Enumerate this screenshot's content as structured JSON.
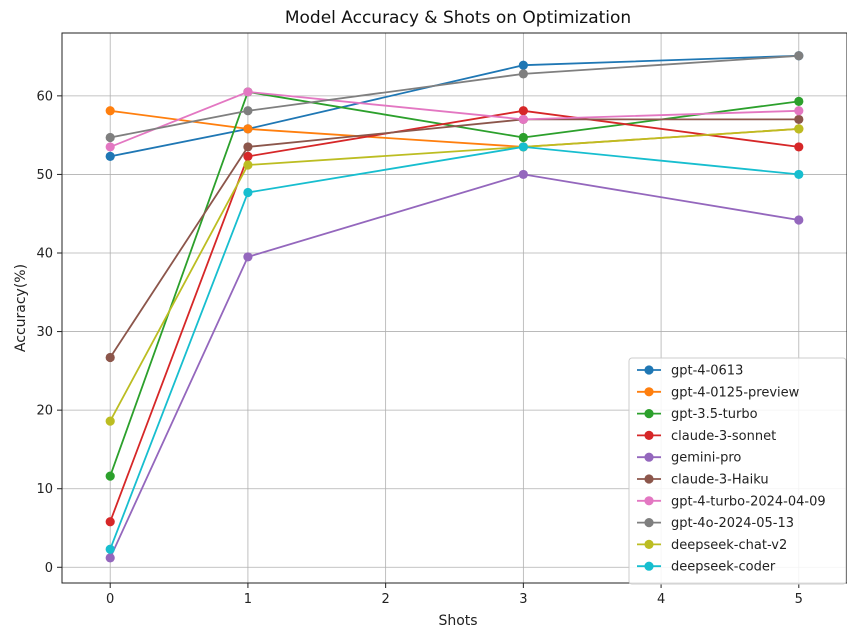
{
  "chart_data": {
    "type": "line",
    "title": "Model Accuracy & Shots on Optimization",
    "xlabel": "Shots",
    "ylabel": "Accuracy(%)",
    "xlim": [
      -0.35,
      5.35
    ],
    "ylim": [
      -2,
      68
    ],
    "xticks": [
      0,
      1,
      2,
      3,
      4,
      5
    ],
    "yticks": [
      0,
      10,
      20,
      30,
      40,
      50,
      60
    ],
    "grid": true,
    "legend_position": "lower right",
    "x": [
      0,
      1,
      3,
      5
    ],
    "series": [
      {
        "name": "gpt-4-0613",
        "color": "#1f77b4",
        "values": [
          52.3,
          55.8,
          63.9,
          65.1
        ]
      },
      {
        "name": "gpt-4-0125-preview",
        "color": "#ff7f0e",
        "values": [
          58.1,
          55.8,
          53.5,
          55.8
        ]
      },
      {
        "name": "gpt-3.5-turbo",
        "color": "#2ca02c",
        "values": [
          11.6,
          60.5,
          54.7,
          59.3
        ]
      },
      {
        "name": "claude-3-sonnet",
        "color": "#d62728",
        "values": [
          5.8,
          52.3,
          58.1,
          53.5
        ]
      },
      {
        "name": "gemini-pro",
        "color": "#9467bd",
        "values": [
          1.2,
          39.5,
          50.0,
          44.2
        ]
      },
      {
        "name": "claude-3-Haiku",
        "color": "#8c564b",
        "values": [
          26.7,
          53.5,
          57.0,
          57.0
        ]
      },
      {
        "name": "gpt-4-turbo-2024-04-09",
        "color": "#e377c2",
        "values": [
          53.5,
          60.5,
          57.0,
          58.1
        ]
      },
      {
        "name": "gpt-4o-2024-05-13",
        "color": "#7f7f7f",
        "values": [
          54.7,
          58.1,
          62.8,
          65.1
        ]
      },
      {
        "name": "deepseek-chat-v2",
        "color": "#bcbd22",
        "values": [
          18.6,
          51.2,
          53.5,
          55.8
        ]
      },
      {
        "name": "deepseek-coder",
        "color": "#17becf",
        "values": [
          2.3,
          47.7,
          53.5,
          50.0
        ]
      }
    ]
  }
}
